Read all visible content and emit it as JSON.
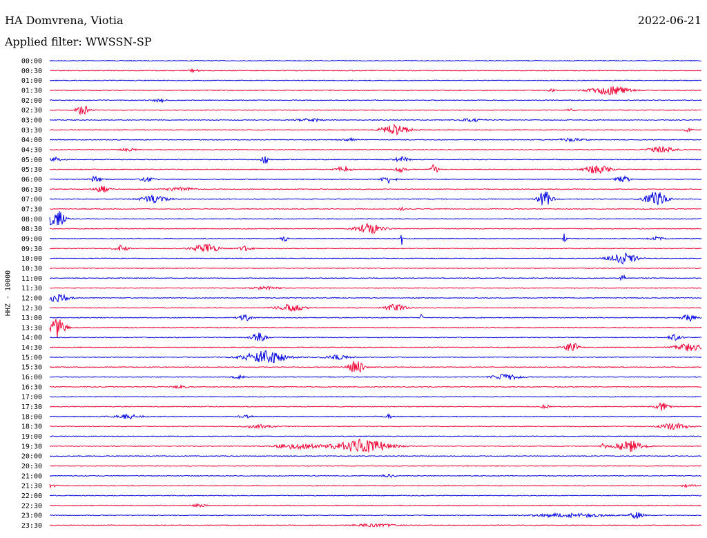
{
  "header": {
    "station": "HA Domvrena, Viotia",
    "date": "2022-06-21",
    "filter": "Applied filter: WWSSN-SP"
  },
  "chart_data": {
    "type": "line",
    "ylabel": "HHZ - 10000",
    "colors": [
      "#0000e0",
      "#ee0033"
    ],
    "rows": [
      {
        "label": "00:00",
        "events": []
      },
      {
        "label": "00:30",
        "events": [
          [
            0.22,
            2,
            0.01
          ]
        ]
      },
      {
        "label": "01:00",
        "events": []
      },
      {
        "label": "01:30",
        "events": [
          [
            0.77,
            2,
            0.005
          ],
          [
            0.86,
            6,
            0.03
          ]
        ]
      },
      {
        "label": "02:00",
        "events": [
          [
            0.17,
            3,
            0.01
          ]
        ]
      },
      {
        "label": "02:30",
        "events": [
          [
            0.05,
            7,
            0.01
          ],
          [
            0.8,
            2,
            0.005
          ]
        ]
      },
      {
        "label": "03:00",
        "events": [
          [
            0.4,
            2,
            0.02
          ],
          [
            0.65,
            2,
            0.02
          ]
        ]
      },
      {
        "label": "03:30",
        "events": [
          [
            0.53,
            8,
            0.02
          ],
          [
            0.98,
            3,
            0.005
          ]
        ]
      },
      {
        "label": "04:00",
        "events": [
          [
            0.46,
            2,
            0.01
          ],
          [
            0.8,
            2,
            0.02
          ]
        ]
      },
      {
        "label": "04:30",
        "events": [
          [
            0.12,
            2,
            0.01
          ],
          [
            0.94,
            4,
            0.02
          ]
        ]
      },
      {
        "label": "05:00",
        "events": [
          [
            0.01,
            3,
            0.01
          ],
          [
            0.33,
            6,
            0.005
          ],
          [
            0.54,
            4,
            0.01
          ]
        ]
      },
      {
        "label": "05:30",
        "events": [
          [
            0.45,
            5,
            0.01
          ],
          [
            0.54,
            4,
            0.01
          ],
          [
            0.59,
            8,
            0.005
          ],
          [
            0.84,
            6,
            0.02
          ]
        ]
      },
      {
        "label": "06:00",
        "events": [
          [
            0.07,
            4,
            0.01
          ],
          [
            0.15,
            3,
            0.01
          ],
          [
            0.52,
            5,
            0.01
          ],
          [
            0.88,
            5,
            0.01
          ]
        ]
      },
      {
        "label": "06:30",
        "events": [
          [
            0.08,
            5,
            0.01
          ],
          [
            0.2,
            3,
            0.02
          ]
        ]
      },
      {
        "label": "07:00",
        "events": [
          [
            0.16,
            5,
            0.02
          ],
          [
            0.76,
            12,
            0.01
          ],
          [
            0.93,
            12,
            0.015
          ]
        ]
      },
      {
        "label": "07:30",
        "events": [
          [
            0.54,
            2,
            0.005
          ]
        ]
      },
      {
        "label": "08:00",
        "events": [
          [
            0.01,
            14,
            0.012
          ]
        ]
      },
      {
        "label": "08:30",
        "events": [
          [
            0.49,
            7,
            0.02
          ]
        ]
      },
      {
        "label": "09:00",
        "events": [
          [
            0.36,
            5,
            0.005
          ],
          [
            0.54,
            9,
            0.002
          ],
          [
            0.79,
            9,
            0.002
          ],
          [
            0.93,
            3,
            0.01
          ]
        ]
      },
      {
        "label": "09:30",
        "events": [
          [
            0.11,
            5,
            0.01
          ],
          [
            0.24,
            6,
            0.02
          ],
          [
            0.3,
            3,
            0.01
          ]
        ]
      },
      {
        "label": "10:00",
        "events": [
          [
            0.88,
            8,
            0.02
          ]
        ]
      },
      {
        "label": "10:30",
        "events": []
      },
      {
        "label": "11:00",
        "events": [
          [
            0.88,
            4,
            0.005
          ]
        ]
      },
      {
        "label": "11:30",
        "events": [
          [
            0.33,
            2,
            0.02
          ]
        ]
      },
      {
        "label": "12:00",
        "events": [
          [
            0.01,
            6,
            0.02
          ]
        ]
      },
      {
        "label": "12:30",
        "events": [
          [
            0.37,
            5,
            0.02
          ],
          [
            0.53,
            5,
            0.015
          ]
        ]
      },
      {
        "label": "13:00",
        "events": [
          [
            0.3,
            4,
            0.01
          ],
          [
            0.57,
            5,
            0.002
          ],
          [
            0.98,
            5,
            0.01
          ]
        ]
      },
      {
        "label": "13:30",
        "events": [
          [
            0.01,
            16,
            0.012
          ]
        ]
      },
      {
        "label": "14:00",
        "events": [
          [
            0.32,
            7,
            0.01
          ],
          [
            0.96,
            4,
            0.01
          ]
        ]
      },
      {
        "label": "14:30",
        "events": [
          [
            0.8,
            8,
            0.01
          ],
          [
            0.98,
            6,
            0.02
          ]
        ]
      },
      {
        "label": "15:00",
        "events": [
          [
            0.33,
            10,
            0.03
          ],
          [
            0.44,
            3,
            0.02
          ]
        ]
      },
      {
        "label": "15:30",
        "events": [
          [
            0.47,
            11,
            0.01
          ]
        ]
      },
      {
        "label": "16:00",
        "events": [
          [
            0.29,
            2,
            0.01
          ],
          [
            0.7,
            4,
            0.02
          ]
        ]
      },
      {
        "label": "16:30",
        "events": [
          [
            0.2,
            2,
            0.01
          ]
        ]
      },
      {
        "label": "17:00",
        "events": []
      },
      {
        "label": "17:30",
        "events": [
          [
            0.76,
            4,
            0.005
          ],
          [
            0.94,
            6,
            0.01
          ]
        ]
      },
      {
        "label": "18:00",
        "events": [
          [
            0.12,
            3,
            0.02
          ],
          [
            0.3,
            2,
            0.01
          ],
          [
            0.52,
            4,
            0.005
          ]
        ]
      },
      {
        "label": "18:30",
        "events": [
          [
            0.32,
            3,
            0.02
          ],
          [
            0.96,
            5,
            0.02
          ]
        ]
      },
      {
        "label": "19:00",
        "events": []
      },
      {
        "label": "19:30",
        "events": [
          [
            0.38,
            4,
            0.03
          ],
          [
            0.48,
            10,
            0.04
          ],
          [
            0.85,
            4,
            0.005
          ],
          [
            0.89,
            8,
            0.02
          ]
        ]
      },
      {
        "label": "20:00",
        "events": []
      },
      {
        "label": "20:30",
        "events": []
      },
      {
        "label": "21:00",
        "events": [
          [
            0.52,
            2,
            0.01
          ]
        ]
      },
      {
        "label": "21:30",
        "events": [
          [
            0.0,
            2,
            0.01
          ],
          [
            0.98,
            2,
            0.01
          ]
        ]
      },
      {
        "label": "22:00",
        "events": []
      },
      {
        "label": "22:30",
        "events": [
          [
            0.23,
            2,
            0.01
          ]
        ]
      },
      {
        "label": "23:00",
        "events": [
          [
            0.8,
            3,
            0.05
          ],
          [
            0.9,
            5,
            0.01
          ]
        ]
      },
      {
        "label": "23:30",
        "events": [
          [
            0.5,
            2,
            0.03
          ]
        ]
      }
    ]
  }
}
